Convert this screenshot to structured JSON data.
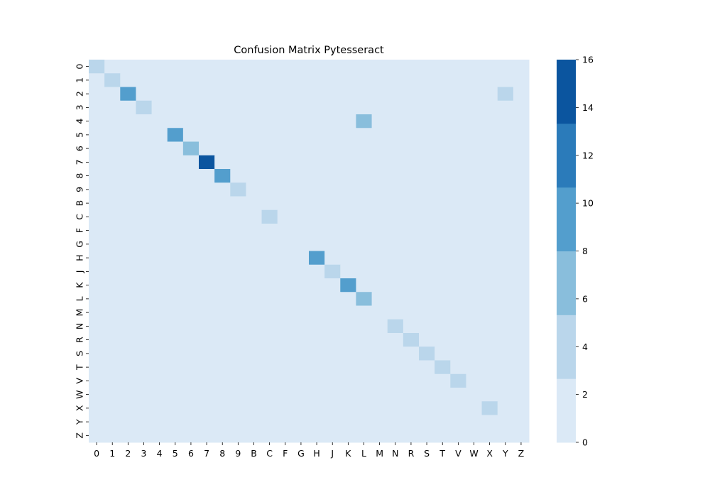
{
  "chart_data": {
    "type": "heatmap",
    "title": "Confusion Matrix Pytesseract",
    "xlabel": "",
    "ylabel": "",
    "labels": [
      "0",
      "1",
      "2",
      "3",
      "4",
      "5",
      "6",
      "7",
      "8",
      "9",
      "B",
      "C",
      "F",
      "G",
      "H",
      "J",
      "K",
      "L",
      "M",
      "N",
      "R",
      "S",
      "T",
      "V",
      "W",
      "X",
      "Y",
      "Z"
    ],
    "colorbar": {
      "min": 0,
      "max": 16,
      "ticks": [
        0,
        2,
        4,
        6,
        8,
        10,
        12,
        14,
        16
      ]
    },
    "colors": [
      "#dbe9f6",
      "#bad6eb",
      "#89bedc",
      "#539ecd",
      "#2b7bba",
      "#0b559f"
    ],
    "cells": [
      {
        "row": "0",
        "col": "0",
        "value": 4
      },
      {
        "row": "1",
        "col": "1",
        "value": 4
      },
      {
        "row": "2",
        "col": "2",
        "value": 10
      },
      {
        "row": "2",
        "col": "Y",
        "value": 4
      },
      {
        "row": "3",
        "col": "3",
        "value": 4
      },
      {
        "row": "4",
        "col": "L",
        "value": 7
      },
      {
        "row": "5",
        "col": "5",
        "value": 10
      },
      {
        "row": "6",
        "col": "6",
        "value": 7
      },
      {
        "row": "7",
        "col": "7",
        "value": 16
      },
      {
        "row": "8",
        "col": "8",
        "value": 10
      },
      {
        "row": "9",
        "col": "9",
        "value": 4
      },
      {
        "row": "C",
        "col": "C",
        "value": 4
      },
      {
        "row": "H",
        "col": "H",
        "value": 10
      },
      {
        "row": "J",
        "col": "J",
        "value": 4
      },
      {
        "row": "K",
        "col": "K",
        "value": 10
      },
      {
        "row": "L",
        "col": "L",
        "value": 7
      },
      {
        "row": "N",
        "col": "N",
        "value": 4
      },
      {
        "row": "R",
        "col": "R",
        "value": 4
      },
      {
        "row": "S",
        "col": "S",
        "value": 4
      },
      {
        "row": "T",
        "col": "T",
        "value": 4
      },
      {
        "row": "V",
        "col": "V",
        "value": 4
      },
      {
        "row": "X",
        "col": "X",
        "value": 4
      }
    ]
  }
}
